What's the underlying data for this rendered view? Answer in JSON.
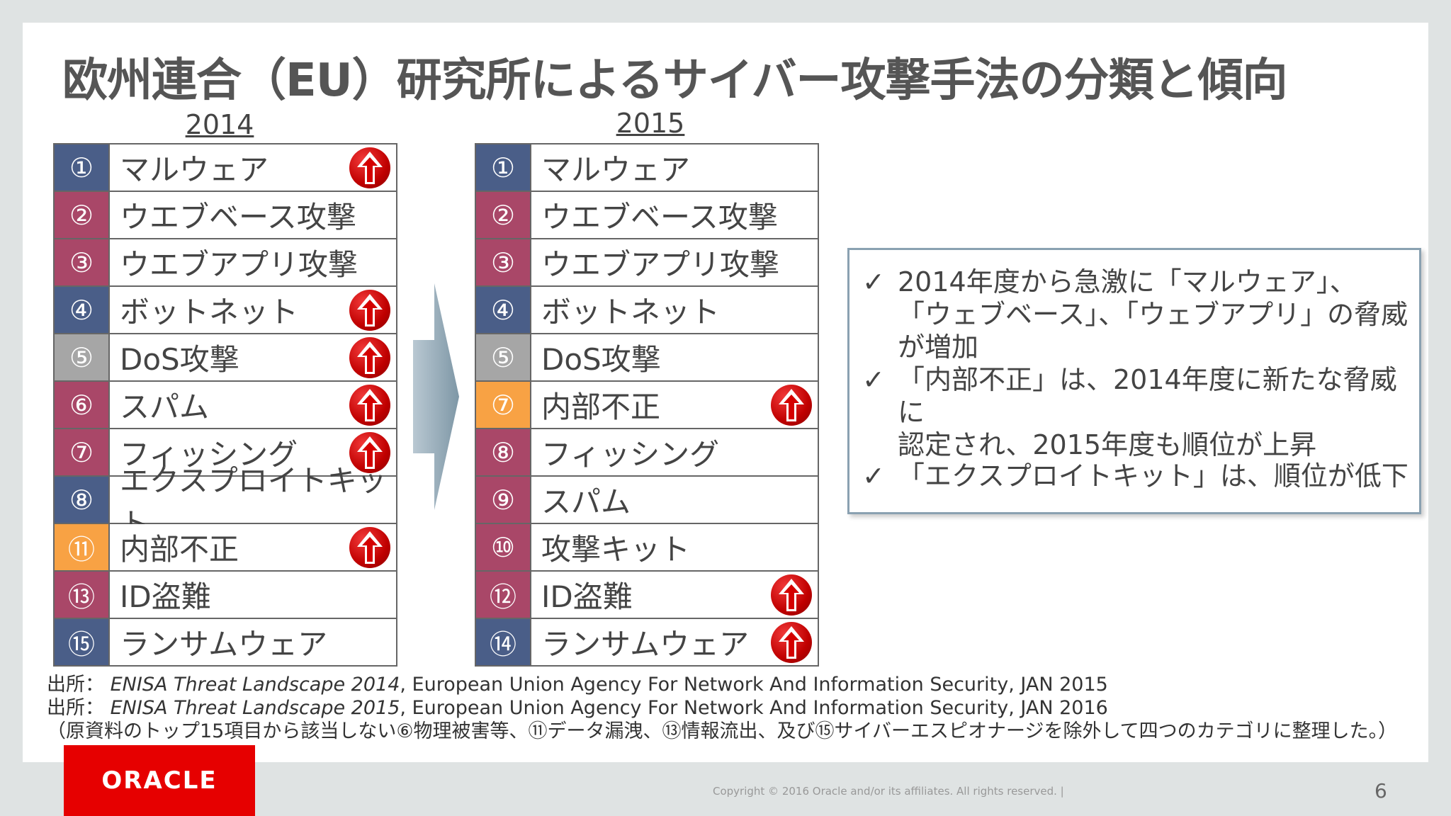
{
  "title": "欧州連合（EU）研究所によるサイバー攻撃手法の分類と傾向",
  "year2014": "2014",
  "year2015": "2015",
  "colors": {
    "blue": "#4a5e88",
    "maroon": "#a94768",
    "gray": "#a6a6a6",
    "orange": "#f8a244",
    "red": "#c00000"
  },
  "table2014": [
    {
      "num": "①",
      "label": "マルウェア",
      "color": "blue",
      "up": true
    },
    {
      "num": "②",
      "label": "ウエブベース攻撃",
      "color": "maroon",
      "up": false
    },
    {
      "num": "③",
      "label": "ウエブアプリ攻撃",
      "color": "maroon",
      "up": false
    },
    {
      "num": "④",
      "label": "ボットネット",
      "color": "blue",
      "up": true
    },
    {
      "num": "⑤",
      "label": "DoS攻撃",
      "color": "gray",
      "up": true
    },
    {
      "num": "⑥",
      "label": "スパム",
      "color": "maroon",
      "up": true
    },
    {
      "num": "⑦",
      "label": "フィッシング",
      "color": "maroon",
      "up": true
    },
    {
      "num": "⑧",
      "label": "エクスプロイトキット",
      "color": "blue",
      "up": false
    },
    {
      "num": "⑪",
      "label": "内部不正",
      "color": "orange",
      "up": true
    },
    {
      "num": "⑬",
      "label": "ID盗難",
      "color": "maroon",
      "up": false
    },
    {
      "num": "⑮",
      "label": "ランサムウェア",
      "color": "blue",
      "up": false
    }
  ],
  "table2015": [
    {
      "num": "①",
      "label": "マルウェア",
      "color": "blue",
      "up": false
    },
    {
      "num": "②",
      "label": "ウエブベース攻撃",
      "color": "maroon",
      "up": false
    },
    {
      "num": "③",
      "label": "ウエブアプリ攻撃",
      "color": "maroon",
      "up": false
    },
    {
      "num": "④",
      "label": "ボットネット",
      "color": "blue",
      "up": false
    },
    {
      "num": "⑤",
      "label": "DoS攻撃",
      "color": "gray",
      "up": false
    },
    {
      "num": "⑦",
      "label": "内部不正",
      "color": "orange",
      "up": true
    },
    {
      "num": "⑧",
      "label": "フィッシング",
      "color": "maroon",
      "up": false
    },
    {
      "num": "⑨",
      "label": "スパム",
      "color": "maroon",
      "up": false
    },
    {
      "num": "⑩",
      "label": "攻撃キット",
      "color": "maroon",
      "up": false
    },
    {
      "num": "⑫",
      "label": "ID盗難",
      "color": "maroon",
      "up": true
    },
    {
      "num": "⑭",
      "label": "ランサムウェア",
      "color": "blue",
      "up": true
    }
  ],
  "bullets": [
    "2014年度から急激に「マルウェア」、\n「ウェブベース」、「ウェブアプリ」の脅威が増加",
    "「内部不正」は、2014年度に新たな脅威に\n認定され、2015年度も順位が上昇",
    "「エクスプロイトキット」は、順位が低下"
  ],
  "sources": {
    "prefix": "出所：",
    "line1_italic": "ENISA Threat Landscape 2014",
    "line1_rest": ", European Union Agency For Network And Information Security, JAN 2015",
    "line2_italic": "ENISA Threat Landscape 2015",
    "line2_rest": ", European Union Agency For Network And Information Security, JAN 2016",
    "note": "（原資料のトップ15項目から該当しない⑥物理被害等、⑪データ漏洩、⑬情報流出、及び⑮サイバーエスピオナージを除外して四つのカテゴリに整理した。）"
  },
  "logo": "ORACLE",
  "copyright": "Copyright © 2016 Oracle and/or its affiliates. All rights reserved.  |",
  "page_number": "6"
}
